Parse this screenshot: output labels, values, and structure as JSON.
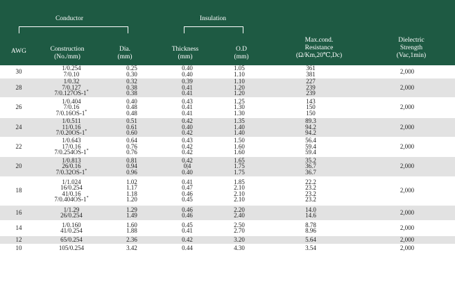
{
  "header": {
    "conductor_group": "Conductor",
    "insulation_group": "Insulation",
    "awg": "AWG",
    "construction": "Construction\n(No./mm)",
    "dia": "Dia.\n(mm)",
    "thickness": "Thickness\n(mm)",
    "od": "O.D\n(mm)",
    "resistance": "Max.cond.\nResistance\n(Ω/Km,20℃,Dc)",
    "dielectric": "Dielectric\nStrength\n(Vac,1min)"
  },
  "colors": {
    "header_bg": "#1e5a43",
    "row_gray": "#e2e2e2"
  },
  "rows": [
    {
      "awg": "30",
      "construction": "1/0.254\n7/0.10",
      "dia": "0.25\n0.30",
      "thickness": "0.40\n0.40",
      "od": "1.05\n1.10",
      "resistance": "361\n381",
      "dielectric": "2,000"
    },
    {
      "awg": "28",
      "construction": "1/0.32\n7/0.127\n7/0.127OS-1*",
      "dia": "0.32\n0.38\n0.38",
      "thickness": "0.39\n0.41\n0.41",
      "od": "1.10\n1.20\n1.20",
      "resistance": "227\n239\n239",
      "dielectric": "2,000"
    },
    {
      "awg": "26",
      "construction": "1/0.404\n7/0.16\n7/0.16OS-1*",
      "dia": "0.40\n0.48\n0.48",
      "thickness": "0.43\n0.41\n0.41",
      "od": "1.25\n1.30\n1.30",
      "resistance": "143\n150\n150",
      "dielectric": "2,000"
    },
    {
      "awg": "24",
      "construction": "1/0.511\n11/0.16\n7/0.20OS-1*",
      "dia": "0.51\n0.61\n0.60",
      "thickness": "0.42\n0.40\n0.42",
      "od": "1.35\n1.40\n1.40",
      "resistance": "89.3\n94.2\n94.2",
      "dielectric": "2,000"
    },
    {
      "awg": "22",
      "construction": "1/0.643\n17/0.16\n7/0.254OS-1*",
      "dia": "0.64\n0.76\n0.76",
      "thickness": "0.43\n0.42\n0.42",
      "od": "1.50\n1.60\n1.60",
      "resistance": "56.4\n59.4\n59.4",
      "dielectric": "2,000"
    },
    {
      "awg": "20",
      "construction": "1/0.813\n26/0.16\n7/0.32OS-1*",
      "dia": "0.81\n0.94\n0.96",
      "thickness": "0.42\n0|4\n0.40",
      "od": "1.65\n1.75\n1.75",
      "resistance": "35.2\n36.7\n36.7",
      "dielectric": "2,000"
    },
    {
      "awg": "18",
      "construction": "1/1.024\n16/0.254\n41/0.16\n7/0.404OS-1*",
      "dia": "1.02\n1.17\n1.18\n1.20",
      "thickness": "0.41\n0.47\n0.46\n0.45",
      "od": "1.85\n2.10\n2.10\n2.10",
      "resistance": "22.2\n23.2\n23.2\n23.2",
      "dielectric": "2,000"
    },
    {
      "awg": "16",
      "construction": "1/1.29\n26/0.254",
      "dia": "1.29\n1.49",
      "thickness": "0.46\n0.46",
      "od": "2.20\n2.40",
      "resistance": "14.0\n14.6",
      "dielectric": "2,000"
    },
    {
      "awg": "14",
      "construction": "1/0.160\n41/0.254",
      "dia": "1.60\n1.88",
      "thickness": "0.45\n0.41",
      "od": "2.50\n2.70",
      "resistance": "8.78\n8.96",
      "dielectric": "2,000"
    },
    {
      "awg": "12",
      "construction": "65/0.254",
      "dia": "2.36",
      "thickness": "0.42",
      "od": "3.20",
      "resistance": "5.64",
      "dielectric": "2,000"
    },
    {
      "awg": "10",
      "construction": "105/0.254",
      "dia": "3.42",
      "thickness": "0.44",
      "od": "4.30",
      "resistance": "3.54",
      "dielectric": "2,000"
    }
  ]
}
